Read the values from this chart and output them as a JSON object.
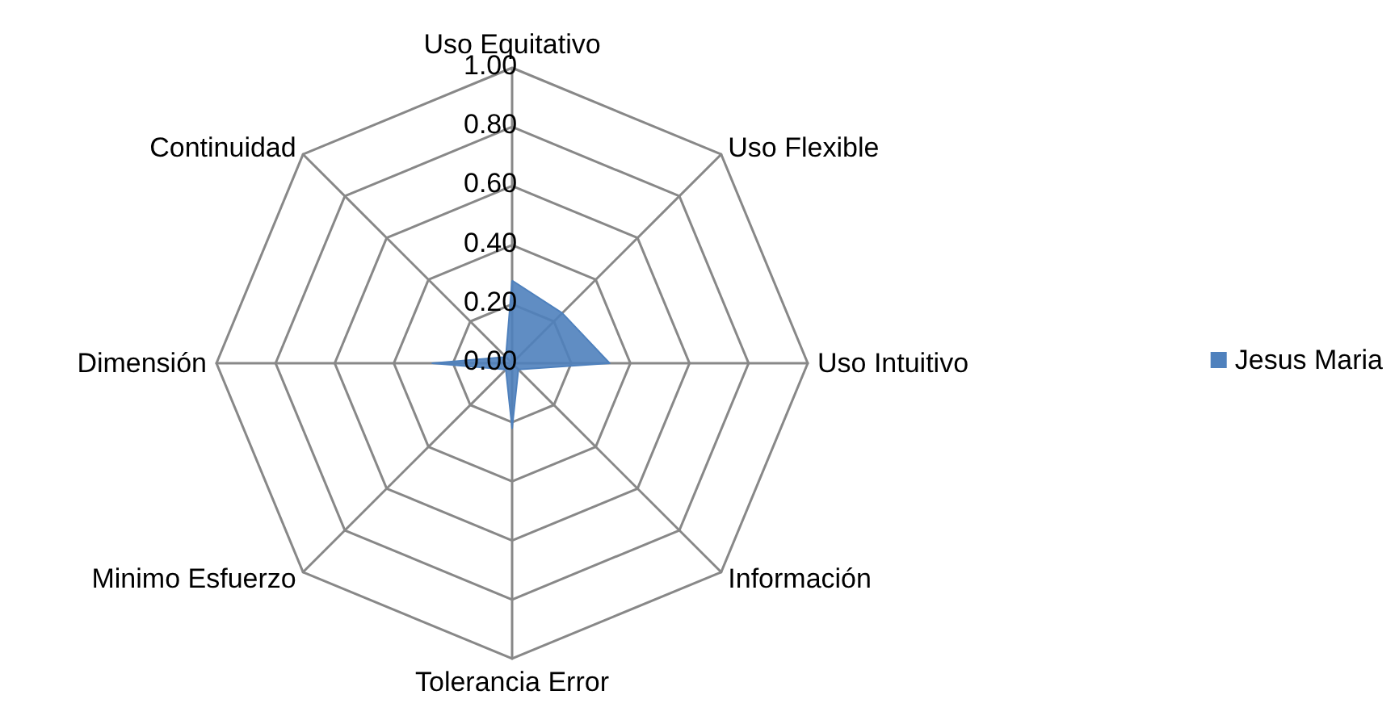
{
  "chart_data": {
    "type": "radar",
    "categories": [
      "Uso Equitativo",
      "Uso Flexible",
      "Uso Intuitivo",
      "Información",
      "Tolerancia Error",
      "Minimo Esfuerzo",
      "Dimensión",
      "Continuidad"
    ],
    "series": [
      {
        "name": "Jesus Maria",
        "color": "#4f81bd",
        "values": [
          0.28,
          0.24,
          0.33,
          0.03,
          0.22,
          0.03,
          0.27,
          0.03
        ]
      }
    ],
    "ylim": [
      0,
      1
    ],
    "yticks": [
      {
        "value": 0,
        "label": "0.00"
      },
      {
        "value": 0.2,
        "label": "0.20"
      },
      {
        "value": 0.4,
        "label": "0.40"
      },
      {
        "value": 0.6,
        "label": "0.60"
      },
      {
        "value": 0.8,
        "label": "0.80"
      },
      {
        "value": 1,
        "label": "1.00"
      }
    ],
    "legend": "right",
    "marker": "none"
  }
}
